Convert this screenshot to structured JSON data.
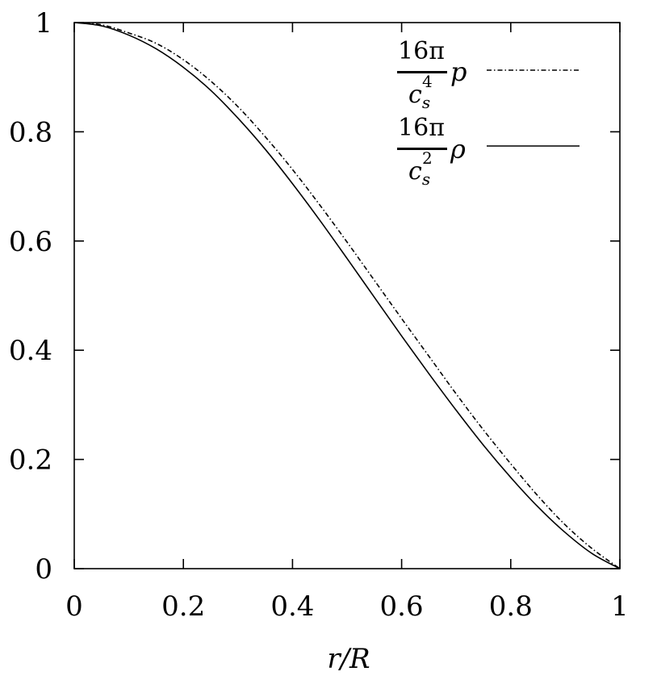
{
  "chart_data": {
    "type": "line",
    "xlabel": "r/R",
    "ylabel": "",
    "xlim": [
      0,
      1
    ],
    "ylim": [
      0,
      1
    ],
    "x_ticks": [
      "0",
      "0.2",
      "0.4",
      "0.6",
      "0.8",
      "1"
    ],
    "y_ticks": [
      "0",
      "0.2",
      "0.4",
      "0.6",
      "0.8",
      "1"
    ],
    "grid": false,
    "legend_position": "top-right",
    "x": [
      0,
      0.05,
      0.1,
      0.15,
      0.2,
      0.25,
      0.3,
      0.35,
      0.4,
      0.45,
      0.5,
      0.55,
      0.6,
      0.65,
      0.7,
      0.75,
      0.8,
      0.85,
      0.9,
      0.95,
      1
    ],
    "series": [
      {
        "name": "p",
        "legend_coefficient_numerator": "16π",
        "legend_coefficient_denominator": "c_s^4",
        "denominator_base": "c",
        "denominator_sub": "s",
        "denominator_sup": "4",
        "symbol": "p",
        "style": "dash-dot",
        "values": [
          1.0,
          0.996,
          0.981,
          0.962,
          0.932,
          0.893,
          0.846,
          0.791,
          0.731,
          0.666,
          0.598,
          0.528,
          0.458,
          0.389,
          0.32,
          0.254,
          0.192,
          0.133,
          0.08,
          0.036,
          0.0
        ]
      },
      {
        "name": "ρ",
        "legend_coefficient_numerator": "16π",
        "legend_coefficient_denominator": "c_s^2",
        "denominator_base": "c",
        "denominator_sub": "s",
        "denominator_sup": "2",
        "symbol": "ρ",
        "style": "solid",
        "values": [
          1.0,
          0.994,
          0.977,
          0.952,
          0.918,
          0.876,
          0.825,
          0.768,
          0.705,
          0.638,
          0.568,
          0.497,
          0.426,
          0.357,
          0.29,
          0.226,
          0.167,
          0.113,
          0.066,
          0.027,
          0.0
        ]
      }
    ]
  }
}
